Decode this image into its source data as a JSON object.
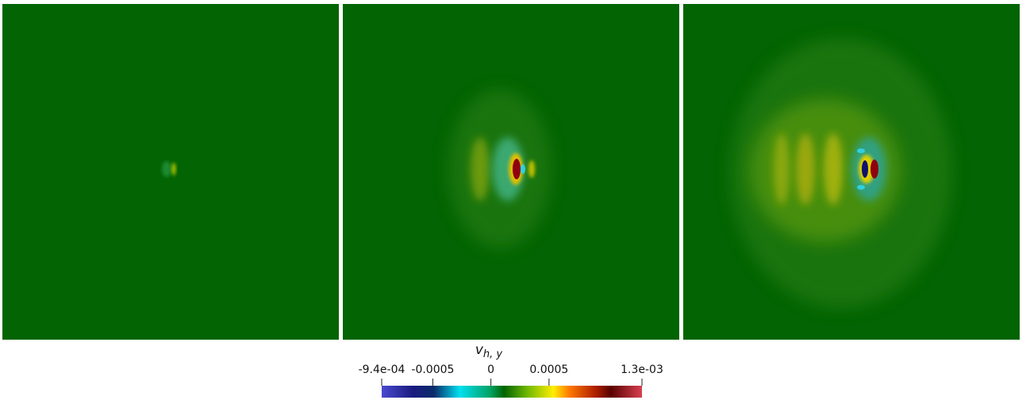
{
  "colorbar": {
    "title": {
      "main": "v",
      "subscript": "h, y"
    },
    "lim": [
      -0.00094,
      0.0013
    ],
    "ticks": [
      {
        "value": -0.00094,
        "label": "-9.4e-04"
      },
      -0.0005,
      0,
      0.0005,
      {
        "value": 0.0013,
        "label": "1.3e-03"
      }
    ]
  }
}
